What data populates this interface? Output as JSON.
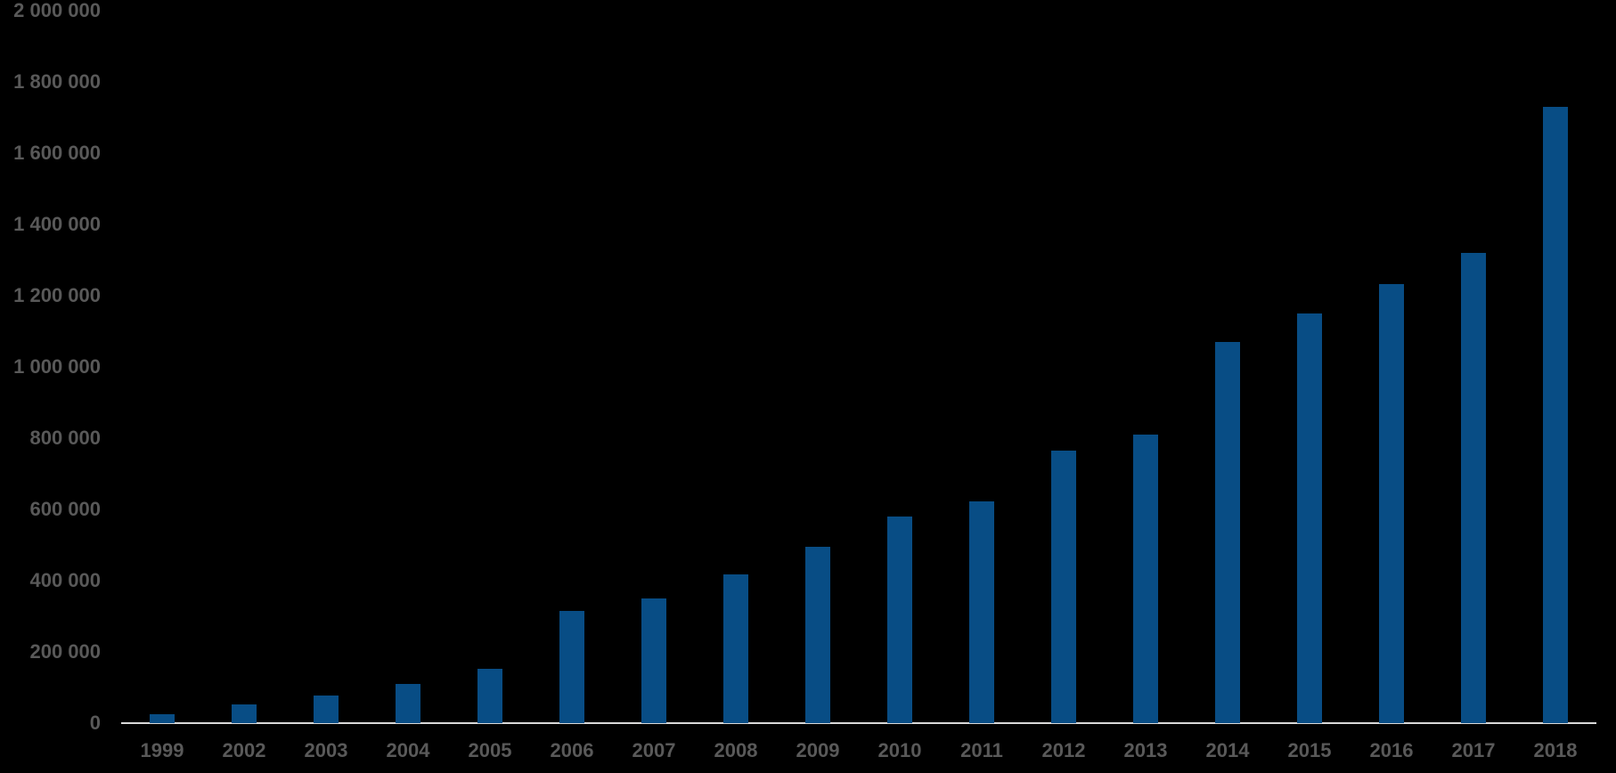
{
  "chart_data": {
    "type": "bar",
    "title": "",
    "xlabel": "",
    "ylabel": "",
    "categories": [
      "1999",
      "2002",
      "2003",
      "2004",
      "2005",
      "2006",
      "2007",
      "2008",
      "2009",
      "2010",
      "2011",
      "2012",
      "2013",
      "2014",
      "2015",
      "2016",
      "2017",
      "2018"
    ],
    "values": [
      25000,
      52000,
      78000,
      110000,
      153000,
      315000,
      351000,
      418000,
      495000,
      581000,
      623000,
      766000,
      810000,
      1069000,
      1149000,
      1232000,
      1319000,
      1731000
    ],
    "ylim": [
      0,
      2000000
    ],
    "ytick_step": 200000,
    "yticks": [
      {
        "value": 0,
        "label": "0"
      },
      {
        "value": 200000,
        "label": "200 000"
      },
      {
        "value": 400000,
        "label": "400 000"
      },
      {
        "value": 600000,
        "label": "600 000"
      },
      {
        "value": 800000,
        "label": "800 000"
      },
      {
        "value": 1000000,
        "label": "1 000 000"
      },
      {
        "value": 1200000,
        "label": "1 200 000"
      },
      {
        "value": 1400000,
        "label": "1 400 000"
      },
      {
        "value": 1600000,
        "label": "1 600 000"
      },
      {
        "value": 1800000,
        "label": "1 800 000"
      },
      {
        "value": 2000000,
        "label": "2 000 000"
      }
    ],
    "grid": false,
    "legend": false,
    "colors": {
      "bar": "#084d85",
      "axis_line": "#d9d9d9",
      "tick_label": "#595959",
      "background": "#000000"
    }
  }
}
